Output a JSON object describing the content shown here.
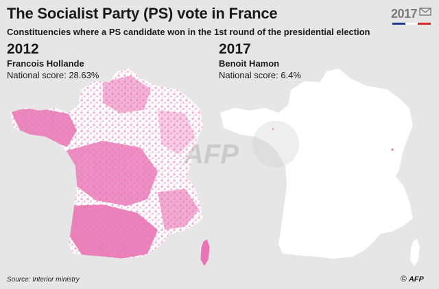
{
  "header": {
    "title": "The Socialist Party (PS) vote in France",
    "subtitle": "Constituencies where a PS candidate won in the 1st round of the presidential election",
    "logo_text": "2017"
  },
  "panels": [
    {
      "year": "2012",
      "candidate": "Francois Hollande",
      "national_score": "National score: 28.63%"
    },
    {
      "year": "2017",
      "candidate": "Benoit Hamon",
      "national_score": "National score: 6.4%"
    }
  ],
  "colors": {
    "background": "#e6e6e6",
    "ps_win": "#e874b4",
    "land": "#ffffff",
    "text": "#1a1a1a",
    "logo_grey": "#7a7a7a",
    "logo_blue": "#1f3a8a",
    "logo_red": "#d62828"
  },
  "watermark": "AFP",
  "footer": {
    "source": "Source: Interior ministry",
    "copyright": "©",
    "agency": "AFP"
  }
}
